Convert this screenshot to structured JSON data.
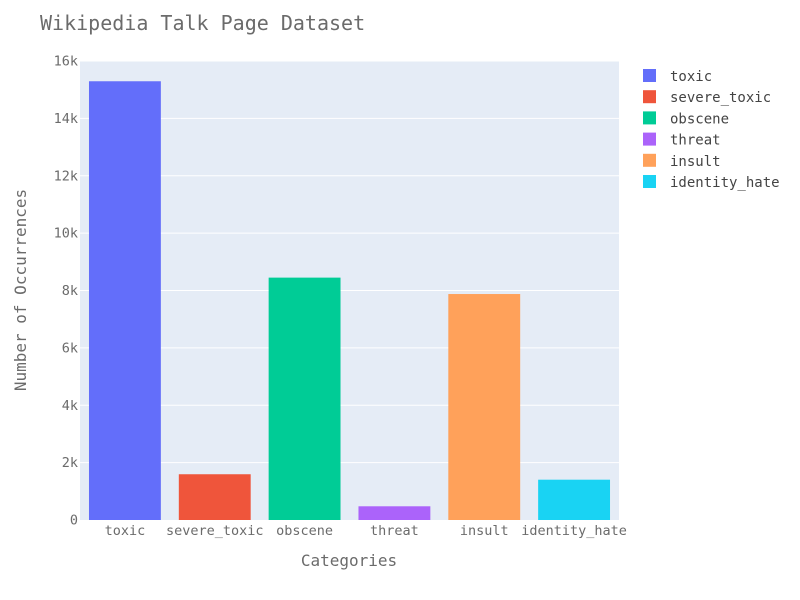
{
  "chart_data": {
    "type": "bar",
    "title": "Wikipedia Talk Page Dataset",
    "xlabel": "Categories",
    "ylabel": "Number of Occurrences",
    "categories": [
      "toxic",
      "severe_toxic",
      "obscene",
      "threat",
      "insult",
      "identity_hate"
    ],
    "values": [
      15294,
      1595,
      8449,
      478,
      7877,
      1405
    ],
    "colors": [
      "#636efa",
      "#ef553b",
      "#00cc96",
      "#ab63fa",
      "#ffa15a",
      "#19d3f3"
    ],
    "ylim": [
      0,
      16000
    ],
    "yticks": [
      0,
      2000,
      4000,
      6000,
      8000,
      10000,
      12000,
      14000,
      16000
    ],
    "ytick_labels": [
      "0",
      "2k",
      "4k",
      "6k",
      "8k",
      "10k",
      "12k",
      "14k",
      "16k"
    ],
    "grid": true,
    "plot_background": "#e5ecf6",
    "legend_position": "right",
    "legend": [
      "toxic",
      "severe_toxic",
      "obscene",
      "threat",
      "insult",
      "identity_hate"
    ]
  }
}
